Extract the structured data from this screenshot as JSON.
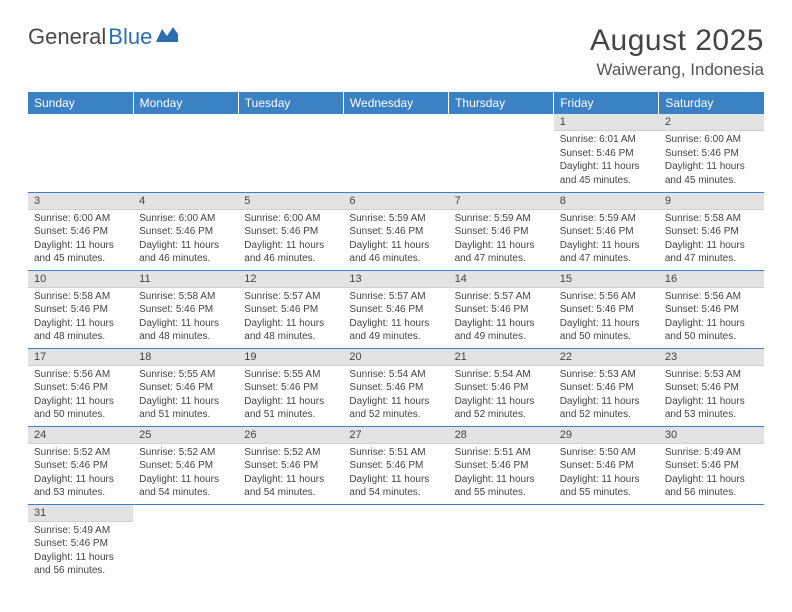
{
  "logo": {
    "word1": "General",
    "word2": "Blue"
  },
  "title": "August 2025",
  "location": "Waiwerang, Indonesia",
  "colors": {
    "header_bg": "#3b82c4",
    "header_text": "#ffffff",
    "date_bar_bg": "#e3e3e3",
    "row_divider": "#3b82c4",
    "logo_gray": "#4a4a4a",
    "logo_blue": "#2b6fb0",
    "text": "#444444"
  },
  "day_headers": [
    "Sunday",
    "Monday",
    "Tuesday",
    "Wednesday",
    "Thursday",
    "Friday",
    "Saturday"
  ],
  "weeks": [
    [
      {
        "date": "",
        "sunrise": "",
        "sunset": "",
        "daylight": ""
      },
      {
        "date": "",
        "sunrise": "",
        "sunset": "",
        "daylight": ""
      },
      {
        "date": "",
        "sunrise": "",
        "sunset": "",
        "daylight": ""
      },
      {
        "date": "",
        "sunrise": "",
        "sunset": "",
        "daylight": ""
      },
      {
        "date": "",
        "sunrise": "",
        "sunset": "",
        "daylight": ""
      },
      {
        "date": "1",
        "sunrise": "Sunrise: 6:01 AM",
        "sunset": "Sunset: 5:46 PM",
        "daylight": "Daylight: 11 hours and 45 minutes."
      },
      {
        "date": "2",
        "sunrise": "Sunrise: 6:00 AM",
        "sunset": "Sunset: 5:46 PM",
        "daylight": "Daylight: 11 hours and 45 minutes."
      }
    ],
    [
      {
        "date": "3",
        "sunrise": "Sunrise: 6:00 AM",
        "sunset": "Sunset: 5:46 PM",
        "daylight": "Daylight: 11 hours and 45 minutes."
      },
      {
        "date": "4",
        "sunrise": "Sunrise: 6:00 AM",
        "sunset": "Sunset: 5:46 PM",
        "daylight": "Daylight: 11 hours and 46 minutes."
      },
      {
        "date": "5",
        "sunrise": "Sunrise: 6:00 AM",
        "sunset": "Sunset: 5:46 PM",
        "daylight": "Daylight: 11 hours and 46 minutes."
      },
      {
        "date": "6",
        "sunrise": "Sunrise: 5:59 AM",
        "sunset": "Sunset: 5:46 PM",
        "daylight": "Daylight: 11 hours and 46 minutes."
      },
      {
        "date": "7",
        "sunrise": "Sunrise: 5:59 AM",
        "sunset": "Sunset: 5:46 PM",
        "daylight": "Daylight: 11 hours and 47 minutes."
      },
      {
        "date": "8",
        "sunrise": "Sunrise: 5:59 AM",
        "sunset": "Sunset: 5:46 PM",
        "daylight": "Daylight: 11 hours and 47 minutes."
      },
      {
        "date": "9",
        "sunrise": "Sunrise: 5:58 AM",
        "sunset": "Sunset: 5:46 PM",
        "daylight": "Daylight: 11 hours and 47 minutes."
      }
    ],
    [
      {
        "date": "10",
        "sunrise": "Sunrise: 5:58 AM",
        "sunset": "Sunset: 5:46 PM",
        "daylight": "Daylight: 11 hours and 48 minutes."
      },
      {
        "date": "11",
        "sunrise": "Sunrise: 5:58 AM",
        "sunset": "Sunset: 5:46 PM",
        "daylight": "Daylight: 11 hours and 48 minutes."
      },
      {
        "date": "12",
        "sunrise": "Sunrise: 5:57 AM",
        "sunset": "Sunset: 5:46 PM",
        "daylight": "Daylight: 11 hours and 48 minutes."
      },
      {
        "date": "13",
        "sunrise": "Sunrise: 5:57 AM",
        "sunset": "Sunset: 5:46 PM",
        "daylight": "Daylight: 11 hours and 49 minutes."
      },
      {
        "date": "14",
        "sunrise": "Sunrise: 5:57 AM",
        "sunset": "Sunset: 5:46 PM",
        "daylight": "Daylight: 11 hours and 49 minutes."
      },
      {
        "date": "15",
        "sunrise": "Sunrise: 5:56 AM",
        "sunset": "Sunset: 5:46 PM",
        "daylight": "Daylight: 11 hours and 50 minutes."
      },
      {
        "date": "16",
        "sunrise": "Sunrise: 5:56 AM",
        "sunset": "Sunset: 5:46 PM",
        "daylight": "Daylight: 11 hours and 50 minutes."
      }
    ],
    [
      {
        "date": "17",
        "sunrise": "Sunrise: 5:56 AM",
        "sunset": "Sunset: 5:46 PM",
        "daylight": "Daylight: 11 hours and 50 minutes."
      },
      {
        "date": "18",
        "sunrise": "Sunrise: 5:55 AM",
        "sunset": "Sunset: 5:46 PM",
        "daylight": "Daylight: 11 hours and 51 minutes."
      },
      {
        "date": "19",
        "sunrise": "Sunrise: 5:55 AM",
        "sunset": "Sunset: 5:46 PM",
        "daylight": "Daylight: 11 hours and 51 minutes."
      },
      {
        "date": "20",
        "sunrise": "Sunrise: 5:54 AM",
        "sunset": "Sunset: 5:46 PM",
        "daylight": "Daylight: 11 hours and 52 minutes."
      },
      {
        "date": "21",
        "sunrise": "Sunrise: 5:54 AM",
        "sunset": "Sunset: 5:46 PM",
        "daylight": "Daylight: 11 hours and 52 minutes."
      },
      {
        "date": "22",
        "sunrise": "Sunrise: 5:53 AM",
        "sunset": "Sunset: 5:46 PM",
        "daylight": "Daylight: 11 hours and 52 minutes."
      },
      {
        "date": "23",
        "sunrise": "Sunrise: 5:53 AM",
        "sunset": "Sunset: 5:46 PM",
        "daylight": "Daylight: 11 hours and 53 minutes."
      }
    ],
    [
      {
        "date": "24",
        "sunrise": "Sunrise: 5:52 AM",
        "sunset": "Sunset: 5:46 PM",
        "daylight": "Daylight: 11 hours and 53 minutes."
      },
      {
        "date": "25",
        "sunrise": "Sunrise: 5:52 AM",
        "sunset": "Sunset: 5:46 PM",
        "daylight": "Daylight: 11 hours and 54 minutes."
      },
      {
        "date": "26",
        "sunrise": "Sunrise: 5:52 AM",
        "sunset": "Sunset: 5:46 PM",
        "daylight": "Daylight: 11 hours and 54 minutes."
      },
      {
        "date": "27",
        "sunrise": "Sunrise: 5:51 AM",
        "sunset": "Sunset: 5:46 PM",
        "daylight": "Daylight: 11 hours and 54 minutes."
      },
      {
        "date": "28",
        "sunrise": "Sunrise: 5:51 AM",
        "sunset": "Sunset: 5:46 PM",
        "daylight": "Daylight: 11 hours and 55 minutes."
      },
      {
        "date": "29",
        "sunrise": "Sunrise: 5:50 AM",
        "sunset": "Sunset: 5:46 PM",
        "daylight": "Daylight: 11 hours and 55 minutes."
      },
      {
        "date": "30",
        "sunrise": "Sunrise: 5:49 AM",
        "sunset": "Sunset: 5:46 PM",
        "daylight": "Daylight: 11 hours and 56 minutes."
      }
    ],
    [
      {
        "date": "31",
        "sunrise": "Sunrise: 5:49 AM",
        "sunset": "Sunset: 5:46 PM",
        "daylight": "Daylight: 11 hours and 56 minutes."
      },
      {
        "date": "",
        "sunrise": "",
        "sunset": "",
        "daylight": ""
      },
      {
        "date": "",
        "sunrise": "",
        "sunset": "",
        "daylight": ""
      },
      {
        "date": "",
        "sunrise": "",
        "sunset": "",
        "daylight": ""
      },
      {
        "date": "",
        "sunrise": "",
        "sunset": "",
        "daylight": ""
      },
      {
        "date": "",
        "sunrise": "",
        "sunset": "",
        "daylight": ""
      },
      {
        "date": "",
        "sunrise": "",
        "sunset": "",
        "daylight": ""
      }
    ]
  ]
}
